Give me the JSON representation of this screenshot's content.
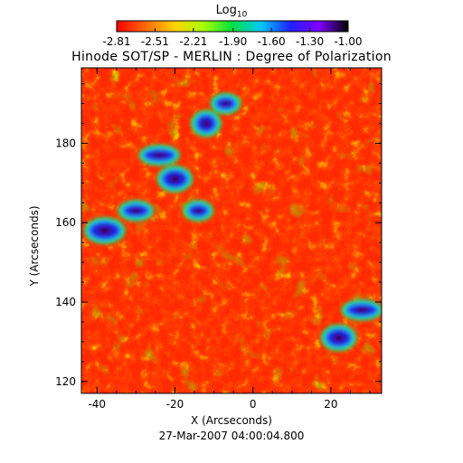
{
  "chart_data": {
    "type": "heatmap",
    "title": "Hinode SOT/SP - MERLIN : Degree of Polarization",
    "xlabel": "X (Arcseconds)",
    "ylabel": "Y (Arcseconds)",
    "xlim": [
      -44,
      33
    ],
    "ylim": [
      117,
      199
    ],
    "x_ticks": [
      -40,
      -20,
      0,
      20
    ],
    "y_ticks": [
      120,
      140,
      160,
      180
    ],
    "x_tick_labels": [
      "-40",
      "-20",
      "0",
      "20"
    ],
    "y_tick_labels": [
      "120",
      "140",
      "160",
      "180"
    ],
    "colorbar": {
      "title_prefix": "Log",
      "title_subscript": "10",
      "range": [
        -2.81,
        -1.0
      ],
      "tick_values": [
        -2.81,
        -2.51,
        -2.21,
        -1.9,
        -1.6,
        -1.3,
        -1.0
      ],
      "tick_labels": [
        "-2.81",
        "-2.51",
        "-2.21",
        "-1.90",
        "-1.60",
        "-1.30",
        "-1.00"
      ],
      "colormap": [
        "#ff0000",
        "#ff6a00",
        "#ffd200",
        "#a6ff00",
        "#00e040",
        "#00c8ff",
        "#2020ff",
        "#8000ff",
        "#000000"
      ]
    },
    "grid": false,
    "regions_high_polarization": [
      {
        "x": -14,
        "y": 163
      },
      {
        "x": -20,
        "y": 171
      },
      {
        "x": -24,
        "y": 177
      },
      {
        "x": -12,
        "y": 185
      },
      {
        "x": -30,
        "y": 163
      },
      {
        "x": -38,
        "y": 158
      },
      {
        "x": -7,
        "y": 190
      },
      {
        "x": 22,
        "y": 131
      },
      {
        "x": 28,
        "y": 138
      }
    ],
    "footer": "27-Mar-2007 04:00:04.800"
  }
}
